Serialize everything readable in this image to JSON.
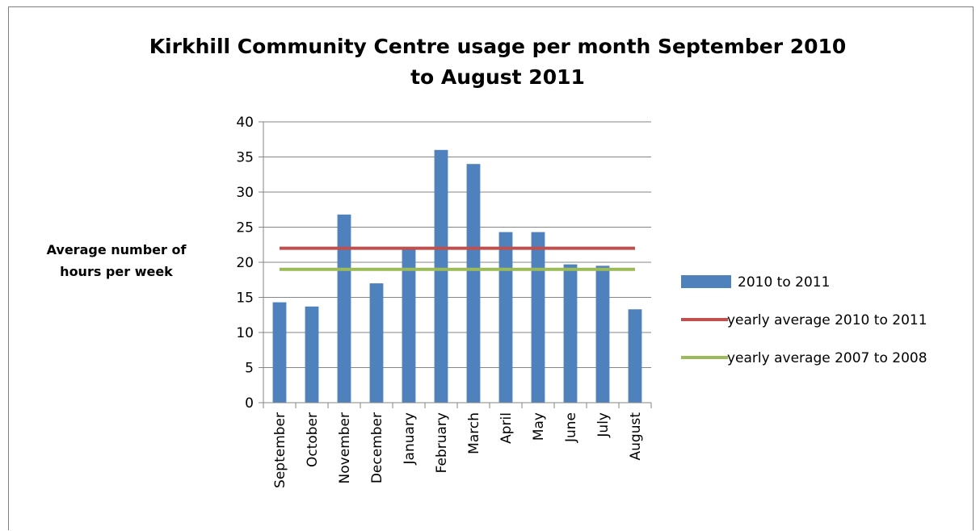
{
  "chart_data": {
    "type": "bar",
    "title": [
      "Kirkhill Community Centre usage per month September 2010",
      "to August 2011"
    ],
    "ylabel": [
      "Average number of",
      "hours per week"
    ],
    "xlabel": "",
    "categories": [
      "September",
      "October",
      "November",
      "December",
      "January",
      "February",
      "March",
      "April",
      "May",
      "June",
      "July",
      "August"
    ],
    "series": [
      {
        "name": "2010 to 2011",
        "type": "bar",
        "color": "#4f81bd",
        "values": [
          14.3,
          13.7,
          26.8,
          17.0,
          22.0,
          36.0,
          34.0,
          24.3,
          24.3,
          19.7,
          19.5,
          13.3
        ]
      },
      {
        "name": "yearly average 2010 to 2011",
        "type": "line",
        "color": "#c0504d",
        "value": 22.0
      },
      {
        "name": "yearly average 2007 to 2008",
        "type": "line",
        "color": "#9bbb59",
        "value": 19.0
      }
    ],
    "ylim": [
      0,
      40
    ],
    "yticks": [
      0,
      5,
      10,
      15,
      20,
      25,
      30,
      35,
      40
    ],
    "grid": true,
    "legend_position": "right"
  }
}
